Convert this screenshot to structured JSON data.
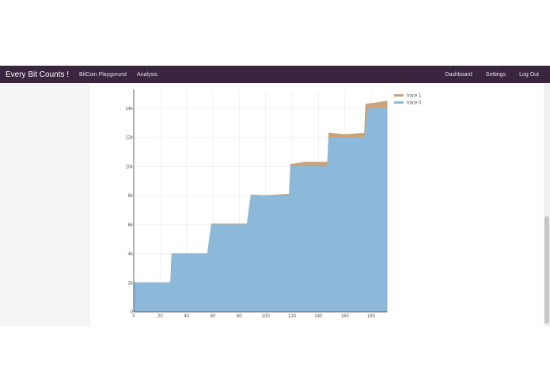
{
  "navbar": {
    "brand": "Every Bit Counts !",
    "links": [
      "BitCoin Playgorund",
      "Analysis"
    ],
    "right_links": [
      "Dashboard",
      "Settings",
      "Log Out"
    ],
    "background": "#3a2540"
  },
  "chart_data": {
    "type": "area",
    "title": "",
    "xlabel": "",
    "ylabel": "",
    "xlim": [
      0,
      192
    ],
    "ylim": [
      0,
      15200
    ],
    "grid": true,
    "legend_position": "top-right",
    "xticks": [
      0,
      20,
      40,
      60,
      80,
      100,
      120,
      140,
      160,
      180
    ],
    "yticks": [
      0,
      2000,
      4000,
      6000,
      8000,
      10000,
      12000,
      14000
    ],
    "ytick_labels": [
      "0",
      "2k",
      "4k",
      "6k",
      "8k",
      "10k",
      "12k",
      "14k"
    ],
    "series": [
      {
        "name": "trace 0",
        "color": "#8cb8d9",
        "x": [
          0,
          28,
          29,
          56,
          59,
          86,
          89,
          118,
          119,
          147,
          148,
          175,
          178,
          192
        ],
        "y": [
          2000,
          2000,
          4000,
          4000,
          6000,
          6000,
          8000,
          8000,
          10000,
          10000,
          12000,
          12000,
          14000,
          14000
        ]
      },
      {
        "name": "trace 1",
        "color": "#c9a27b",
        "x": [
          0,
          28,
          29,
          56,
          59,
          86,
          89,
          100,
          118,
          119,
          130,
          140,
          147,
          148,
          160,
          175,
          176,
          185,
          192
        ],
        "y": [
          2000,
          2000,
          4000,
          4000,
          6050,
          6050,
          8050,
          8000,
          8100,
          10150,
          10300,
          10300,
          10300,
          12300,
          12200,
          12300,
          14300,
          14400,
          14500
        ]
      }
    ],
    "legend": [
      "trace 1",
      "trace 0"
    ]
  }
}
